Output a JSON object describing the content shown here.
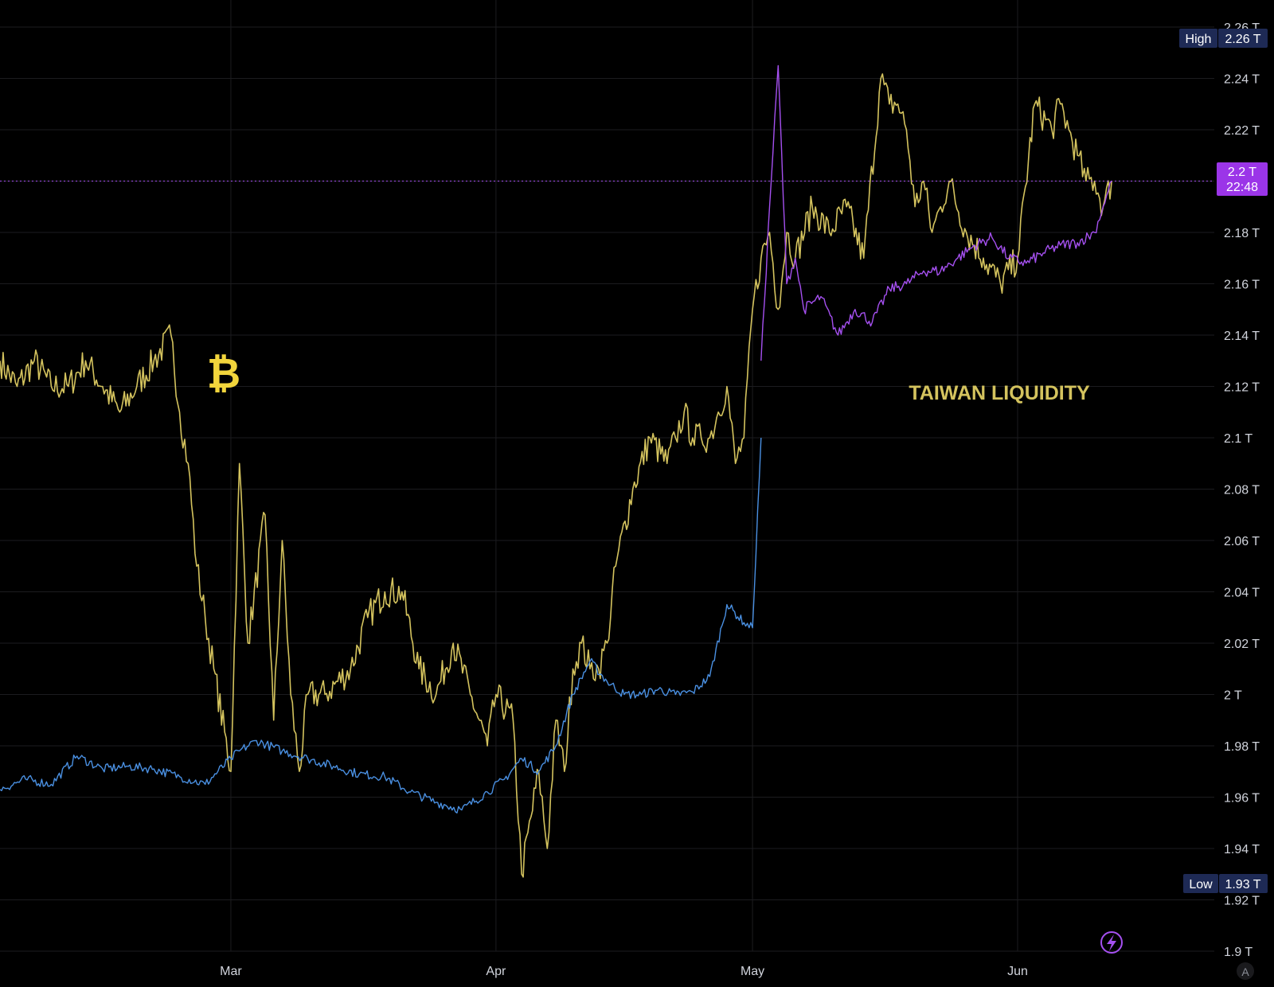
{
  "colors": {
    "background": "#000000",
    "grid": "#1c1c1f",
    "btc": "#d4c35e",
    "liquidity": "#4a90e2",
    "liquidity_recent": "#a550f0",
    "badge_dark": "#1e2a55",
    "badge_price": "#9b35e8",
    "axis_text": "#d1d4dc"
  },
  "icons": {
    "bitcoin": "bitcoin-icon",
    "lightning": "lightning-icon",
    "auto_scale": "auto-scale-icon"
  },
  "chart": {
    "annotation": "TAIWAN LIQUIDITY",
    "btc_symbol": "₿",
    "high_label": "High",
    "high_value": "2.26 T",
    "low_label": "Low",
    "low_value": "1.93 T",
    "last_value": "2.2 T",
    "countdown": "22:48",
    "auto_label": "A"
  },
  "chart_data": {
    "type": "line",
    "ylim": [
      1.9,
      2.26
    ],
    "y_unit": "T",
    "yticks": [
      "1.9 T",
      "1.92 T",
      "1.94 T",
      "1.96 T",
      "1.98 T",
      "2 T",
      "2.02 T",
      "2.04 T",
      "2.06 T",
      "2.08 T",
      "2.1 T",
      "2.12 T",
      "2.14 T",
      "2.16 T",
      "2.18 T",
      "2.2 T",
      "2.22 T",
      "2.24 T",
      "2.26 T"
    ],
    "xticks": [
      {
        "label": "Mar",
        "date": "03-01"
      },
      {
        "label": "Apr",
        "date": "04-01"
      },
      {
        "label": "May",
        "date": "05-01"
      },
      {
        "label": "Jun",
        "date": "06-01"
      }
    ],
    "xlim": [
      "02-03",
      "06-24"
    ],
    "last_price": 2.2,
    "high": 2.26,
    "low": 1.93,
    "series": [
      {
        "name": "",
        "color": "#d4c35e",
        "x": [
          "02-03",
          "02-05",
          "02-07",
          "02-09",
          "02-11",
          "02-13",
          "02-15",
          "02-17",
          "02-19",
          "02-21",
          "02-23",
          "02-24",
          "02-25",
          "02-26",
          "02-27",
          "02-28",
          "03-01",
          "03-02",
          "03-03",
          "03-05",
          "03-06",
          "03-07",
          "03-08",
          "03-09",
          "03-10",
          "03-12",
          "03-15",
          "03-17",
          "03-19",
          "03-21",
          "03-23",
          "03-25",
          "03-27",
          "03-29",
          "03-31",
          "04-01",
          "04-03",
          "04-04",
          "04-06",
          "04-07",
          "04-08",
          "04-09",
          "04-10",
          "04-11",
          "04-12",
          "04-13",
          "04-14",
          "04-15",
          "04-17",
          "04-19",
          "04-21",
          "04-22",
          "04-23",
          "04-24",
          "04-25",
          "04-26",
          "04-27",
          "04-28",
          "04-29",
          "04-30",
          "05-01",
          "05-02",
          "05-03",
          "05-04",
          "05-05",
          "05-06",
          "05-08",
          "05-10",
          "05-12",
          "05-14",
          "05-16",
          "05-17",
          "05-18",
          "05-19",
          "05-20",
          "05-21",
          "05-22",
          "05-23",
          "05-24",
          "05-26",
          "05-28",
          "05-30",
          "06-01",
          "06-03",
          "06-05",
          "06-06",
          "06-07",
          "06-08",
          "06-09",
          "06-10",
          "06-11",
          "06-12"
        ],
        "y": [
          2.13,
          2.12,
          2.13,
          2.12,
          2.12,
          2.13,
          2.12,
          2.11,
          2.12,
          2.13,
          2.14,
          2.11,
          2.09,
          2.05,
          2.03,
          2.01,
          1.97,
          2.09,
          2.02,
          2.07,
          1.99,
          2.06,
          2.0,
          1.97,
          2.0,
          2.0,
          2.01,
          2.03,
          2.04,
          2.04,
          2.01,
          2.0,
          2.02,
          2.0,
          1.98,
          2.0,
          1.99,
          1.93,
          1.97,
          1.94,
          1.99,
          1.97,
          2.01,
          2.02,
          2.01,
          2.01,
          2.02,
          2.05,
          2.08,
          2.1,
          2.09,
          2.1,
          2.11,
          2.1,
          2.1,
          2.1,
          2.11,
          2.12,
          2.09,
          2.1,
          2.15,
          2.17,
          2.18,
          2.15,
          2.18,
          2.17,
          2.19,
          2.18,
          2.19,
          2.17,
          2.24,
          2.23,
          2.23,
          2.22,
          2.19,
          2.2,
          2.18,
          2.19,
          2.2,
          2.18,
          2.17,
          2.16,
          2.17,
          2.23,
          2.22,
          2.23,
          2.22,
          2.21,
          2.2,
          2.2,
          2.19,
          2.2
        ]
      },
      {
        "name": "",
        "color": "#4a90e2",
        "x": [
          "02-03",
          "02-06",
          "02-09",
          "02-12",
          "02-15",
          "02-18",
          "02-21",
          "02-24",
          "02-27",
          "03-01",
          "03-02",
          "03-04",
          "03-07",
          "03-10",
          "03-13",
          "03-16",
          "03-19",
          "03-22",
          "03-25",
          "03-28",
          "03-31",
          "04-02",
          "04-04",
          "04-06",
          "04-08",
          "04-10",
          "04-12",
          "04-14",
          "04-16",
          "04-18",
          "04-20",
          "04-22",
          "04-24",
          "04-26",
          "04-28",
          "04-30",
          "05-01",
          "05-02"
        ],
        "y": [
          1.963,
          1.967,
          1.965,
          1.976,
          1.971,
          1.972,
          1.971,
          1.968,
          1.965,
          1.975,
          1.978,
          1.982,
          1.978,
          1.975,
          1.972,
          1.969,
          1.968,
          1.962,
          1.958,
          1.955,
          1.962,
          1.967,
          1.975,
          1.97,
          1.98,
          2.0,
          2.013,
          2.005,
          2.0,
          2.0,
          2.002,
          2.0,
          2.001,
          2.007,
          2.035,
          2.028,
          2.026,
          2.1
        ]
      },
      {
        "name": "",
        "color": "#a550f0",
        "x": [
          "05-02",
          "05-03",
          "05-04",
          "05-05",
          "05-06",
          "05-07",
          "05-09",
          "05-11",
          "05-13",
          "05-15",
          "05-17",
          "05-19",
          "05-21",
          "05-23",
          "05-25",
          "05-27",
          "05-29",
          "05-31",
          "06-02",
          "06-04",
          "06-06",
          "06-08",
          "06-10",
          "06-11",
          "06-12"
        ],
        "y": [
          2.13,
          2.19,
          2.245,
          2.16,
          2.17,
          2.15,
          2.155,
          2.14,
          2.15,
          2.145,
          2.158,
          2.16,
          2.165,
          2.165,
          2.17,
          2.175,
          2.178,
          2.17,
          2.168,
          2.172,
          2.175,
          2.176,
          2.18,
          2.19,
          2.2
        ]
      }
    ]
  }
}
